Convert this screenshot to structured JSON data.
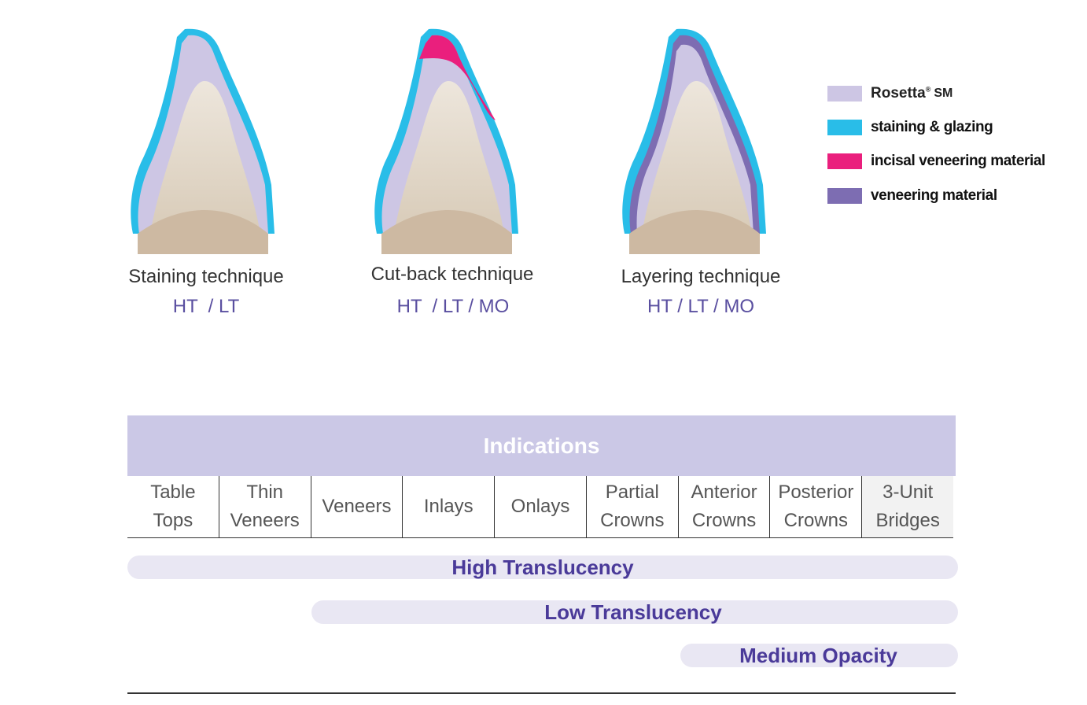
{
  "techniques": [
    {
      "name": "Staining technique",
      "materials": "HT  / LT"
    },
    {
      "name": "Cut-back technique",
      "materials": "HT  / LT / MO"
    },
    {
      "name": "Layering technique",
      "materials": "HT / LT / MO"
    }
  ],
  "legend": {
    "brand": "Rosetta",
    "brand_mark": "®",
    "brand_suffix": "SM",
    "items": [
      "staining & glazing",
      "incisal veneering material",
      "veneering material"
    ]
  },
  "table": {
    "title": "Indications",
    "columns": [
      [
        "Table",
        "Tops"
      ],
      [
        "Thin",
        "Veneers"
      ],
      [
        "Veneers"
      ],
      [
        "Inlays"
      ],
      [
        "Onlays"
      ],
      [
        "Partial",
        "Crowns"
      ],
      [
        "Anterior",
        "Crowns"
      ],
      [
        "Posterior",
        "Crowns"
      ],
      [
        "3-Unit",
        "Bridges"
      ]
    ],
    "bands": [
      "High Translucency",
      "Low Translucency",
      "Medium Opacity"
    ]
  }
}
